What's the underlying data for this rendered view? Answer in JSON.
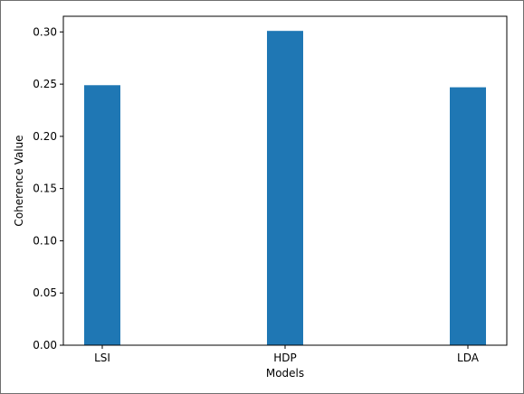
{
  "chart_data": {
    "type": "bar",
    "title": "",
    "xlabel": "Models",
    "ylabel": "Coherence Value",
    "categories": [
      "LSI",
      "HDP",
      "LDA"
    ],
    "values": [
      0.249,
      0.301,
      0.247
    ],
    "ylim": [
      0,
      0.315
    ],
    "yticks": [
      0.0,
      0.05,
      0.1,
      0.15,
      0.2,
      0.25,
      0.3
    ],
    "ytick_labels": [
      "0.00",
      "0.05",
      "0.10",
      "0.15",
      "0.20",
      "0.25",
      "0.30"
    ],
    "grid": false,
    "legend": "none",
    "bar_color": "#1f77b4"
  }
}
